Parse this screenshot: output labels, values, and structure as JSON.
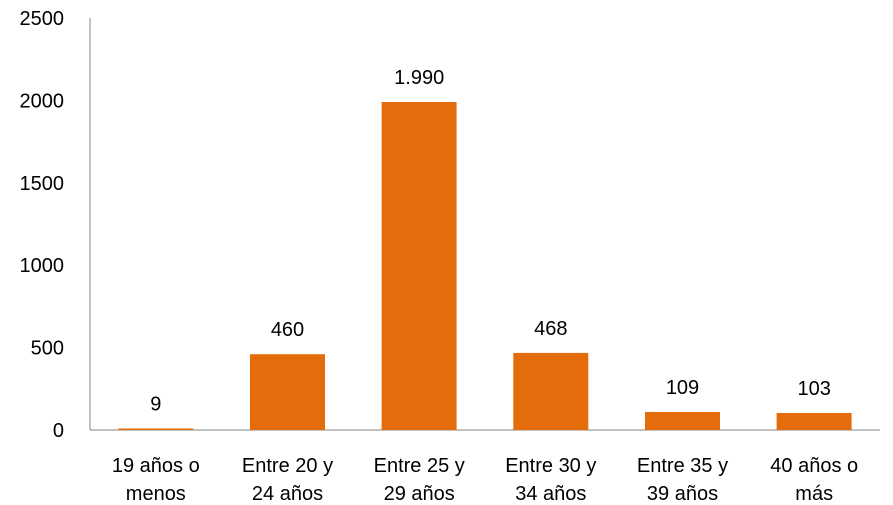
{
  "chart_data": {
    "type": "bar",
    "categories": [
      [
        "19 años o",
        "menos"
      ],
      [
        "Entre 20 y",
        "24 años"
      ],
      [
        "Entre 25 y",
        "29 años"
      ],
      [
        "Entre 30 y",
        "34 años"
      ],
      [
        "Entre 35 y",
        "39 años"
      ],
      [
        "40 años o",
        "más"
      ]
    ],
    "values": [
      9,
      460,
      1990,
      468,
      109,
      103
    ],
    "data_labels": [
      "9",
      "460",
      "1.990",
      "468",
      "109",
      "103"
    ],
    "yticks": [
      "0",
      "500",
      "1000",
      "1500",
      "2000",
      "2500"
    ],
    "ylim": [
      0,
      2500
    ],
    "bar_color": "#E46C0A",
    "axis_color": "#868686",
    "grid": false,
    "legend": "none"
  }
}
